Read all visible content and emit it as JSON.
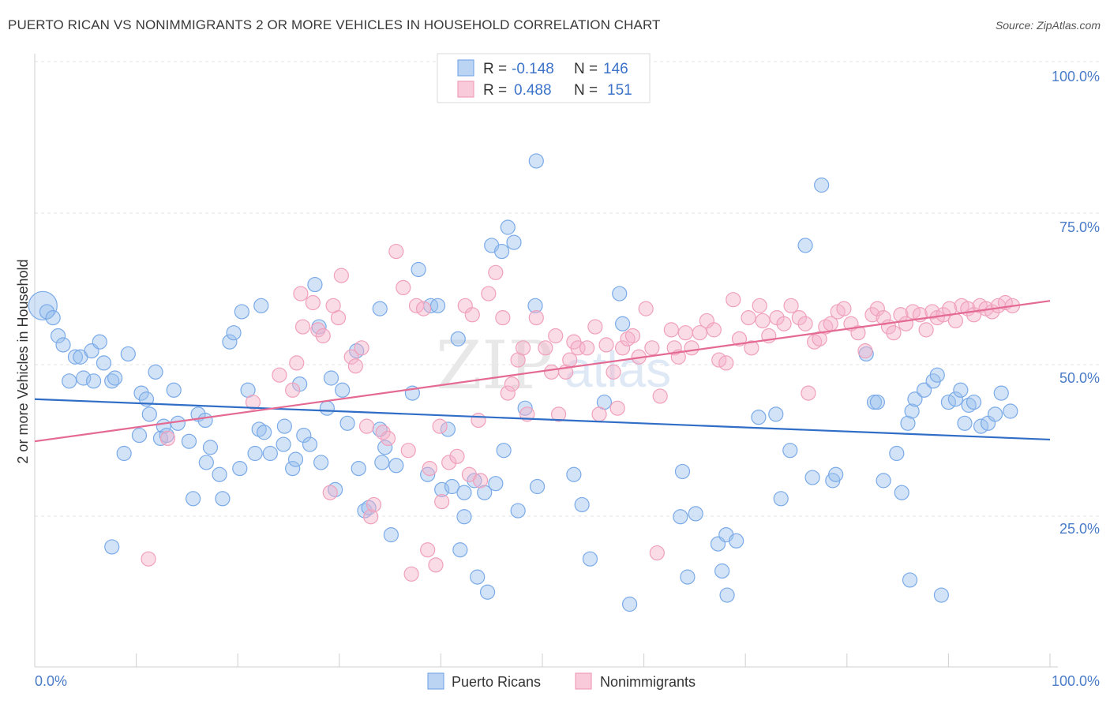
{
  "title": "PUERTO RICAN VS NONIMMIGRANTS 2 OR MORE VEHICLES IN HOUSEHOLD CORRELATION CHART",
  "source": "Source: ZipAtlas.com",
  "watermark": {
    "zip": "ZIP",
    "atlas": "atlas"
  },
  "chart_data": {
    "type": "scatter",
    "xlabel": "",
    "ylabel": "2 or more Vehicles in Household",
    "xlim": [
      0,
      100
    ],
    "ylim": [
      0,
      100
    ],
    "x_tick_labels": [
      "0.0%",
      "100.0%"
    ],
    "y_tick_labels": [
      "100.0%",
      "75.0%",
      "50.0%",
      "25.0%"
    ],
    "y_ticks": [
      100,
      75,
      50,
      25
    ],
    "grid": true,
    "legend_position": "top-center",
    "colors": {
      "puerto_ricans": "#7aaae8",
      "nonimmigrants": "#f0a0bb",
      "puerto_ricans_line": "#2f6dc6",
      "nonimmigrants_line": "#e46a93"
    },
    "legend": [
      {
        "r_label": "R =",
        "r": "-0.148",
        "n_label": "N =",
        "n": "146"
      },
      {
        "r_label": "R =",
        "r": "0.488",
        "n_label": "N =",
        "n": "151"
      }
    ],
    "series": [
      {
        "name": "Puerto Ricans",
        "trend": [
          [
            0,
            46.5
          ],
          [
            100,
            39.8
          ]
        ],
        "points": [
          [
            0.8,
            62
          ],
          [
            1.2,
            61
          ],
          [
            1.8,
            60
          ],
          [
            2.3,
            57
          ],
          [
            2.8,
            55.5
          ],
          [
            4,
            53.5
          ],
          [
            4.5,
            53.5
          ],
          [
            5.6,
            54.5
          ],
          [
            6.4,
            56
          ],
          [
            6.8,
            52.5
          ],
          [
            3.4,
            49.5
          ],
          [
            4.8,
            50
          ],
          [
            5.8,
            49.5
          ],
          [
            7.6,
            49.5
          ],
          [
            7.9,
            50
          ],
          [
            9.2,
            54
          ],
          [
            11.9,
            51
          ],
          [
            10.5,
            47.5
          ],
          [
            11,
            46.5
          ],
          [
            11.3,
            44
          ],
          [
            13.7,
            48
          ],
          [
            14.1,
            42.5
          ],
          [
            12.7,
            42
          ],
          [
            12.4,
            40
          ],
          [
            13,
            40.5
          ],
          [
            15.2,
            39.5
          ],
          [
            10.3,
            40.5
          ],
          [
            8.8,
            37.5
          ],
          [
            16.1,
            44
          ],
          [
            16.8,
            43
          ],
          [
            16.9,
            36
          ],
          [
            17.3,
            38.5
          ],
          [
            18.2,
            34
          ],
          [
            18.5,
            30
          ],
          [
            15.6,
            30
          ],
          [
            7.6,
            22
          ],
          [
            19.2,
            56
          ],
          [
            19.6,
            57.5
          ],
          [
            20.4,
            61
          ],
          [
            22.3,
            62
          ],
          [
            24.5,
            39
          ],
          [
            20.2,
            35
          ],
          [
            21,
            48
          ],
          [
            21.7,
            37.5
          ],
          [
            22.1,
            41.5
          ],
          [
            22.6,
            41
          ],
          [
            23.2,
            37.5
          ],
          [
            24.6,
            42
          ],
          [
            25.4,
            35
          ],
          [
            25.7,
            36.5
          ],
          [
            26.1,
            49
          ],
          [
            26.5,
            40.5
          ],
          [
            27.1,
            39
          ],
          [
            27.6,
            65.5
          ],
          [
            28,
            58.5
          ],
          [
            28.2,
            36
          ],
          [
            28.8,
            45
          ],
          [
            29.2,
            50
          ],
          [
            29.6,
            31.5
          ],
          [
            30.3,
            48
          ],
          [
            30.8,
            42.5
          ],
          [
            31.9,
            35
          ],
          [
            32.5,
            28
          ],
          [
            32.9,
            28.5
          ],
          [
            31.7,
            54.5
          ],
          [
            34.2,
            36
          ],
          [
            34.5,
            38.5
          ],
          [
            35.1,
            24
          ],
          [
            35.6,
            35.5
          ],
          [
            34,
            61.5
          ],
          [
            34,
            41.5
          ],
          [
            37.2,
            47.5
          ],
          [
            37.8,
            68
          ],
          [
            38.7,
            34
          ],
          [
            39,
            62
          ],
          [
            39.7,
            62
          ],
          [
            40.7,
            41.5
          ],
          [
            40.1,
            31.5
          ],
          [
            41.1,
            32
          ],
          [
            42.3,
            31
          ],
          [
            41.7,
            56.5
          ],
          [
            42.3,
            27
          ],
          [
            41.9,
            21.5
          ],
          [
            43.6,
            17
          ],
          [
            43.3,
            33
          ],
          [
            44.6,
            14.5
          ],
          [
            44.3,
            31
          ],
          [
            45.4,
            32.5
          ],
          [
            45,
            72
          ],
          [
            46,
            71
          ],
          [
            46.6,
            75
          ],
          [
            47.2,
            72.5
          ],
          [
            46.2,
            38
          ],
          [
            47.6,
            28
          ],
          [
            48.3,
            45
          ],
          [
            49.4,
            86
          ],
          [
            49.3,
            62
          ],
          [
            49.5,
            32
          ],
          [
            53.1,
            34
          ],
          [
            53.9,
            29
          ],
          [
            54.7,
            20
          ],
          [
            56.1,
            46
          ],
          [
            57.6,
            64
          ],
          [
            57.9,
            59
          ],
          [
            58.6,
            12.5
          ],
          [
            63.8,
            34.5
          ],
          [
            63.6,
            27
          ],
          [
            64.3,
            17
          ],
          [
            65.1,
            27.5
          ],
          [
            67.3,
            22.5
          ],
          [
            67.7,
            18
          ],
          [
            68.2,
            14
          ],
          [
            68.1,
            24
          ],
          [
            69.1,
            23
          ],
          [
            71.3,
            43.5
          ],
          [
            73,
            44
          ],
          [
            73.5,
            30
          ],
          [
            74.4,
            38
          ],
          [
            75.9,
            72
          ],
          [
            76.6,
            33.5
          ],
          [
            77.5,
            82
          ],
          [
            78.6,
            33
          ],
          [
            78.9,
            34
          ],
          [
            81.9,
            54
          ],
          [
            82.7,
            46
          ],
          [
            83,
            46
          ],
          [
            83.6,
            33
          ],
          [
            84.9,
            37.5
          ],
          [
            86,
            42.5
          ],
          [
            85.4,
            31
          ],
          [
            86.4,
            44.5
          ],
          [
            86.7,
            46.5
          ],
          [
            86.2,
            16.5
          ],
          [
            87.6,
            48
          ],
          [
            88.5,
            49.5
          ],
          [
            88.9,
            50.5
          ],
          [
            89.3,
            14
          ],
          [
            90,
            46
          ],
          [
            90.7,
            46.5
          ],
          [
            91.2,
            48
          ],
          [
            91.6,
            42.5
          ],
          [
            92,
            45.5
          ],
          [
            92.5,
            46
          ],
          [
            93.2,
            42
          ],
          [
            93.9,
            42.5
          ],
          [
            94.6,
            44
          ],
          [
            95.2,
            47.5
          ],
          [
            96.1,
            44.5
          ]
        ]
      },
      {
        "name": "Nonimmigrants",
        "trend": [
          [
            0,
            39.5
          ],
          [
            100,
            62.8
          ]
        ],
        "points": [
          [
            11.2,
            20
          ],
          [
            13.1,
            40
          ],
          [
            21.5,
            46
          ],
          [
            24.1,
            50.5
          ],
          [
            25.4,
            48
          ],
          [
            25.8,
            52.5
          ],
          [
            26.4,
            58.5
          ],
          [
            26.2,
            64
          ],
          [
            27.4,
            62.5
          ],
          [
            27.9,
            58
          ],
          [
            28.4,
            57
          ],
          [
            29.1,
            31
          ],
          [
            29.4,
            62
          ],
          [
            29.9,
            60
          ],
          [
            30.2,
            67
          ],
          [
            31.2,
            53.5
          ],
          [
            31.6,
            52
          ],
          [
            32.2,
            55
          ],
          [
            32.7,
            42
          ],
          [
            33.1,
            27
          ],
          [
            33.4,
            29
          ],
          [
            34.3,
            41
          ],
          [
            34.8,
            40
          ],
          [
            35.6,
            71
          ],
          [
            36.3,
            65
          ],
          [
            36.8,
            38
          ],
          [
            37.1,
            17.5
          ],
          [
            37.6,
            62
          ],
          [
            38.3,
            61.5
          ],
          [
            38.9,
            35
          ],
          [
            38.7,
            21.5
          ],
          [
            39.5,
            19
          ],
          [
            39.9,
            42
          ],
          [
            40.1,
            29.5
          ],
          [
            40.8,
            36
          ],
          [
            41.6,
            37
          ],
          [
            42.4,
            62
          ],
          [
            42.8,
            34
          ],
          [
            43.1,
            60.5
          ],
          [
            43.7,
            43
          ],
          [
            43.9,
            33
          ],
          [
            44.7,
            64
          ],
          [
            45.4,
            67.5
          ],
          [
            46.1,
            60
          ],
          [
            46.6,
            47.5
          ],
          [
            47,
            49
          ],
          [
            47.6,
            53
          ],
          [
            48.1,
            55
          ],
          [
            48.5,
            44
          ],
          [
            49.4,
            60
          ],
          [
            50.3,
            55
          ],
          [
            50.9,
            51
          ],
          [
            51.3,
            57
          ],
          [
            51.6,
            44
          ],
          [
            52.3,
            51
          ],
          [
            52.7,
            53
          ],
          [
            53.1,
            56
          ],
          [
            53.5,
            55
          ],
          [
            54.4,
            55
          ],
          [
            55.2,
            58.5
          ],
          [
            55.6,
            44
          ],
          [
            56.3,
            55.5
          ],
          [
            57,
            51
          ],
          [
            57.4,
            45
          ],
          [
            57.9,
            55
          ],
          [
            58.4,
            56.5
          ],
          [
            58.9,
            57
          ],
          [
            59.5,
            53.5
          ],
          [
            60.2,
            61.5
          ],
          [
            60.8,
            55
          ],
          [
            61.3,
            21
          ],
          [
            61.6,
            47
          ],
          [
            62.7,
            58
          ],
          [
            63,
            55
          ],
          [
            63.4,
            53.5
          ],
          [
            64.1,
            57.5
          ],
          [
            64.7,
            55
          ],
          [
            65.5,
            57.5
          ],
          [
            66.2,
            59.5
          ],
          [
            66.9,
            58
          ],
          [
            67.4,
            53
          ],
          [
            68.1,
            52.5
          ],
          [
            68.8,
            63
          ],
          [
            69.4,
            56.5
          ],
          [
            70.3,
            60
          ],
          [
            70.6,
            55
          ],
          [
            71.4,
            62
          ],
          [
            71.7,
            59.5
          ],
          [
            72.3,
            57
          ],
          [
            73.1,
            60
          ],
          [
            73.8,
            59
          ],
          [
            74.5,
            62
          ],
          [
            75.3,
            60
          ],
          [
            75.9,
            59
          ],
          [
            76.2,
            47.5
          ],
          [
            76.8,
            56
          ],
          [
            77.3,
            56.5
          ],
          [
            77.9,
            58.5
          ],
          [
            78.4,
            59
          ],
          [
            79.1,
            61
          ],
          [
            79.7,
            61.5
          ],
          [
            80.4,
            59
          ],
          [
            81.1,
            57.5
          ],
          [
            81.8,
            54.5
          ],
          [
            82.5,
            60.5
          ],
          [
            83,
            61.5
          ],
          [
            83.6,
            60
          ],
          [
            84.1,
            58.5
          ],
          [
            84.6,
            57.5
          ],
          [
            85.3,
            60.5
          ],
          [
            85.8,
            59
          ],
          [
            86.5,
            61
          ],
          [
            87.2,
            60.5
          ],
          [
            87.8,
            58
          ],
          [
            88.4,
            61
          ],
          [
            88.9,
            60
          ],
          [
            89.5,
            60.5
          ],
          [
            90.1,
            61.5
          ],
          [
            90.7,
            59.5
          ],
          [
            91.3,
            62
          ],
          [
            91.9,
            61.5
          ],
          [
            92.5,
            60.5
          ],
          [
            93.1,
            62
          ],
          [
            93.7,
            61.5
          ],
          [
            94.3,
            61
          ],
          [
            94.9,
            62
          ],
          [
            95.6,
            62.5
          ],
          [
            96.3,
            62
          ]
        ]
      }
    ]
  },
  "bottom_legend": [
    {
      "label": "Puerto Ricans"
    },
    {
      "label": "Nonimmigrants"
    }
  ]
}
